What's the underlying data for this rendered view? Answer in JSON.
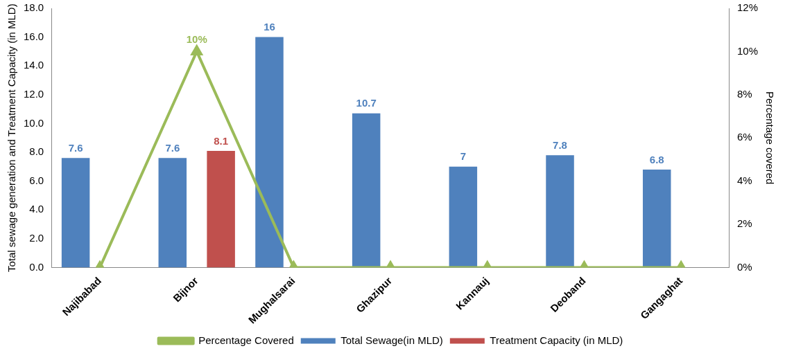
{
  "chart_data": {
    "type": "bar",
    "categories": [
      "Najibabad",
      "Bijnor",
      "Mughalsarai",
      "Ghazipur",
      "Kannauj",
      "Deoband",
      "Gangaghat"
    ],
    "series": [
      {
        "name": "Total Sewage(in MLD)",
        "color": "#4f81bd",
        "values": [
          7.6,
          7.6,
          16,
          10.7,
          7,
          7.8,
          6.8
        ],
        "value_labels": [
          "7.6",
          "7.6",
          "16",
          "10.7",
          "7",
          "7.8",
          "6.8"
        ]
      },
      {
        "name": "Treatment Capacity (in MLD)",
        "color": "#c0504d",
        "values": [
          null,
          8.1,
          null,
          null,
          null,
          null,
          null
        ],
        "value_labels": [
          null,
          "8.1",
          null,
          null,
          null,
          null,
          null
        ]
      },
      {
        "name": "Percentage Covered",
        "type": "line",
        "axis": "y2",
        "color": "#9bbb59",
        "values": [
          0,
          10,
          0,
          0,
          0,
          0,
          0
        ],
        "value_labels": [
          null,
          "10%",
          null,
          null,
          null,
          null,
          null
        ]
      }
    ],
    "ylabel": "Total sewage generation and Treatment Capacity (in MLD)",
    "y2label": "Percentage covered",
    "ylim": [
      0,
      18
    ],
    "yticks": [
      {
        "value": 0,
        "label": "0.0"
      },
      {
        "value": 2,
        "label": "2.0"
      },
      {
        "value": 4,
        "label": "4.0"
      },
      {
        "value": 6,
        "label": "6.0"
      },
      {
        "value": 8,
        "label": "8.0"
      },
      {
        "value": 10,
        "label": "10.0"
      },
      {
        "value": 12,
        "label": "12.0"
      },
      {
        "value": 14,
        "label": "14.0"
      },
      {
        "value": 16,
        "label": "16.0"
      },
      {
        "value": 18,
        "label": "18.0"
      }
    ],
    "y2lim": [
      0,
      12
    ],
    "y2ticks": [
      {
        "value": 0,
        "label": "0%"
      },
      {
        "value": 2,
        "label": "2%"
      },
      {
        "value": 4,
        "label": "4%"
      },
      {
        "value": 6,
        "label": "6%"
      },
      {
        "value": 8,
        "label": "8%"
      },
      {
        "value": 10,
        "label": "10%"
      },
      {
        "value": 12,
        "label": "12%"
      }
    ],
    "grid": false,
    "legend": "bottom",
    "marker": "triangle",
    "line_style": "solid"
  }
}
